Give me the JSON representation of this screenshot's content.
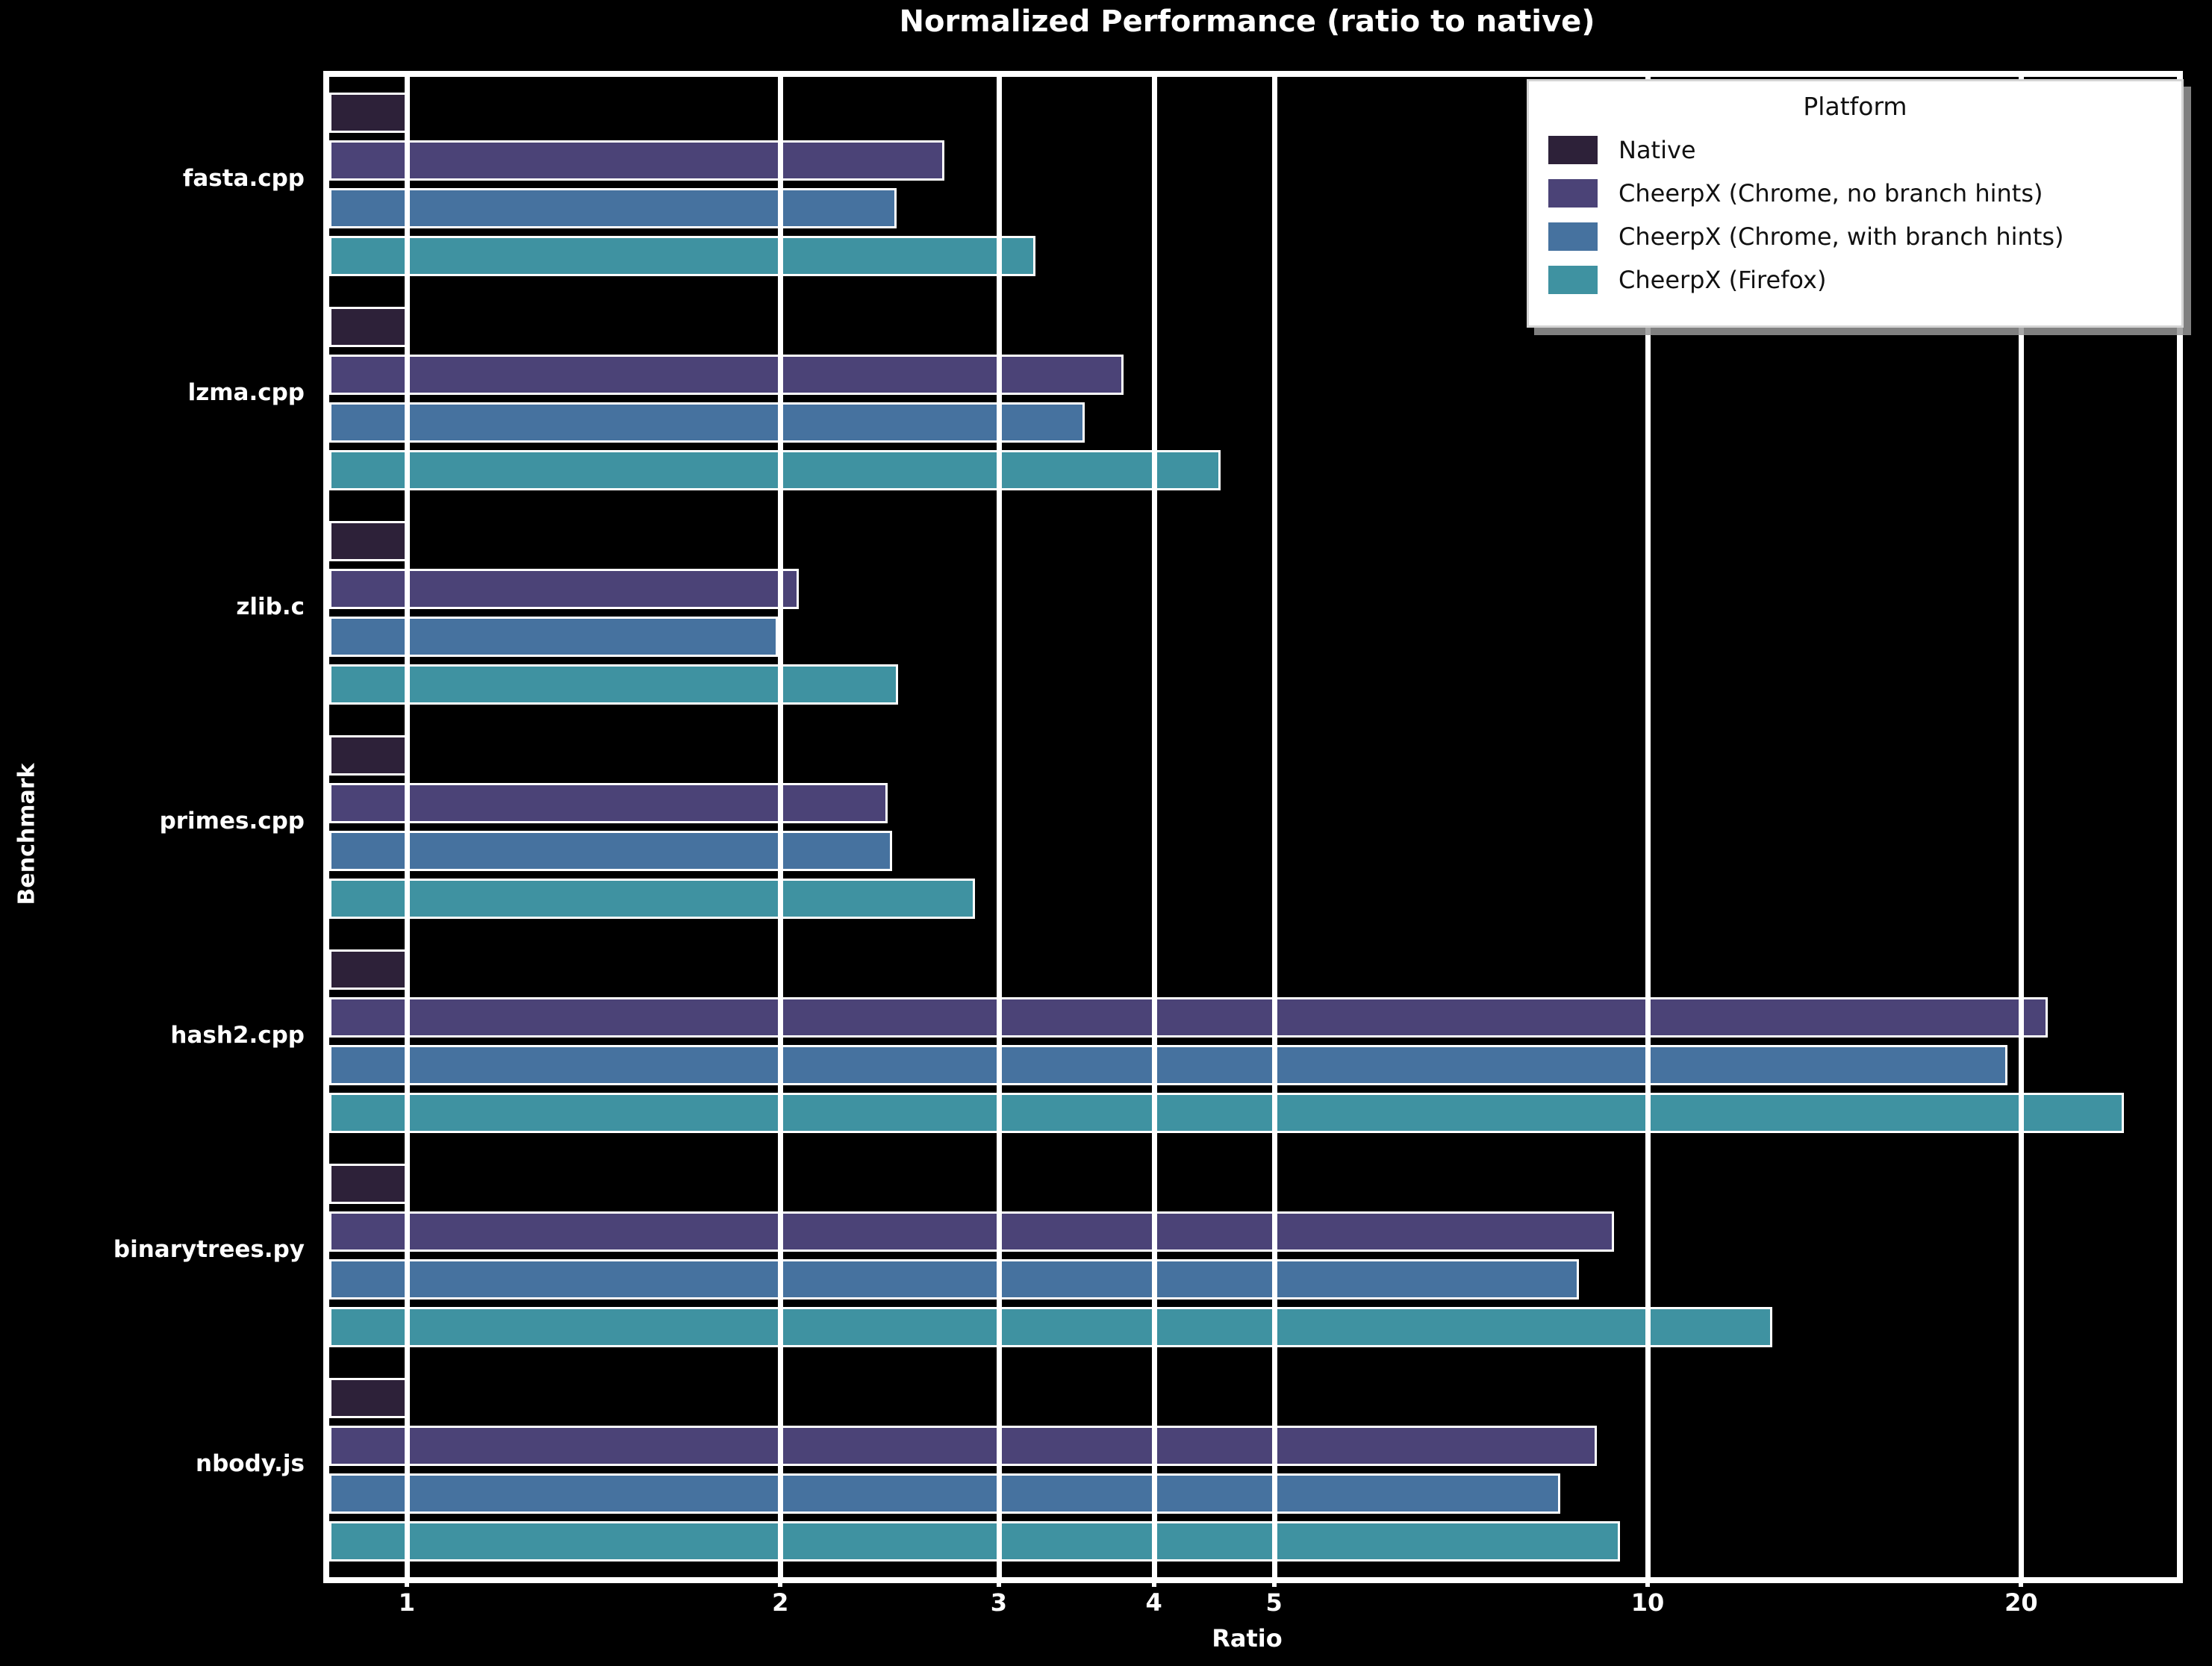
{
  "title": "Normalized Performance (ratio to native)",
  "legend": {
    "title": "Platform"
  },
  "chart_data": {
    "type": "bar",
    "orientation": "horizontal",
    "xscale": "log",
    "title": "Normalized Performance (ratio to native)",
    "xlabel": "Ratio",
    "ylabel": "Benchmark",
    "xlim": [
      0.866,
      26.7
    ],
    "x_ticks": [
      1,
      2,
      3,
      4,
      5,
      10,
      20
    ],
    "grid": true,
    "legend_position": "upper right",
    "background": "#000000",
    "foreground": "#ffffff",
    "categories": [
      "fasta.cpp",
      "lzma.cpp",
      "zlib.c",
      "primes.cpp",
      "hash2.cpp",
      "binarytrees.py",
      "nbody.js"
    ],
    "series": [
      {
        "name": "Native",
        "color": "#2d2139",
        "values": [
          1.0,
          1.0,
          1.0,
          1.0,
          1.0,
          1.0,
          1.0
        ]
      },
      {
        "name": "CheerpX (Chrome, no branch hints)",
        "color": "#4b4377",
        "values": [
          2.71,
          3.78,
          2.07,
          2.44,
          21.0,
          9.4,
          9.1
        ]
      },
      {
        "name": "CheerpX (Chrome, with branch hints)",
        "color": "#46729f",
        "values": [
          2.48,
          3.52,
          1.99,
          2.46,
          19.5,
          8.8,
          8.5
        ]
      },
      {
        "name": "CheerpX (Firefox)",
        "color": "#3f92a1",
        "values": [
          3.21,
          4.53,
          2.49,
          2.87,
          24.2,
          12.6,
          9.5
        ]
      }
    ]
  }
}
